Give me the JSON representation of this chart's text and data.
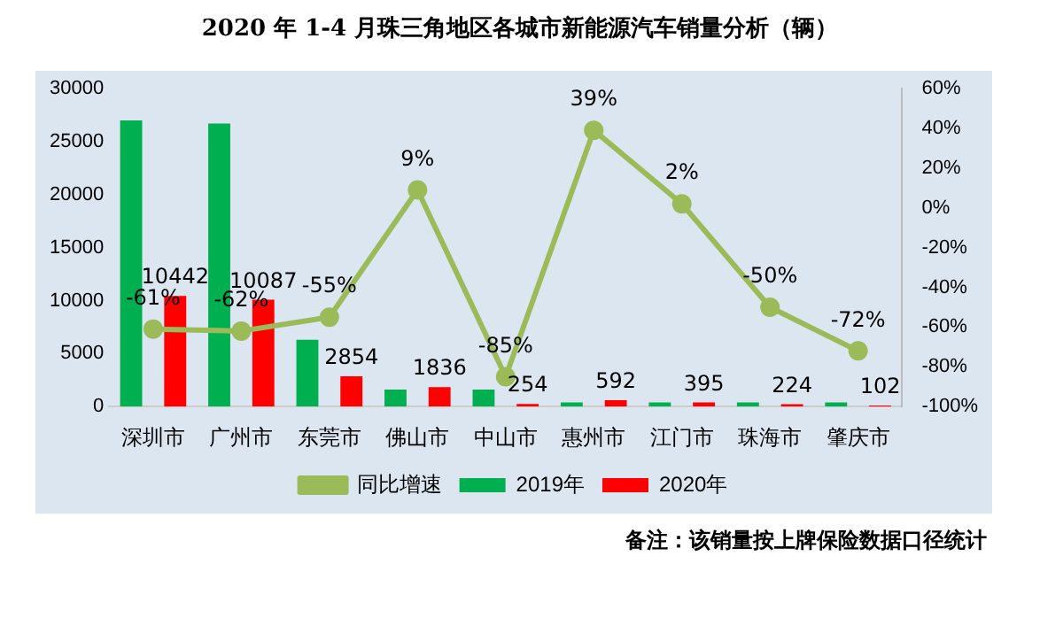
{
  "chart_data": {
    "type": "bar",
    "title": "2020 年 1-4 月珠三角地区各城市新能源汽车销量分析（辆）",
    "categories": [
      "深圳市",
      "广州市",
      "东莞市",
      "佛山市",
      "中山市",
      "惠州市",
      "江门市",
      "珠海市",
      "肇庆市"
    ],
    "series": [
      {
        "name": "2019年",
        "color": "#00b050",
        "values": [
          27000,
          26700,
          6300,
          1600,
          1600,
          400,
          400,
          400,
          400
        ]
      },
      {
        "name": "2020年",
        "color": "#ff0000",
        "values": [
          10442,
          10087,
          2854,
          1836,
          254,
          592,
          395,
          224,
          102
        ],
        "value_labels": [
          "10442",
          "10087",
          "2854",
          "1836",
          "254",
          "592",
          "395",
          "224",
          "102"
        ]
      },
      {
        "name": "同比增速",
        "type": "line",
        "axis": "y2",
        "color": "#9bbb59",
        "values": [
          -61,
          -62,
          -55,
          9,
          -85,
          39,
          2,
          -50,
          -72
        ],
        "value_labels": [
          "-61%",
          "-62%",
          "-55%",
          "9%",
          "-85%",
          "39%",
          "2%",
          "-50%",
          "-72%"
        ]
      }
    ],
    "ylim": [
      0,
      30000
    ],
    "yticks": [
      0,
      5000,
      10000,
      15000,
      20000,
      25000,
      30000
    ],
    "y2lim": [
      -100,
      60
    ],
    "y2ticks": [
      {
        "value": -100,
        "label": "-100%"
      },
      {
        "value": -80,
        "label": "-80%"
      },
      {
        "value": -60,
        "label": "-60%"
      },
      {
        "value": -40,
        "label": "-40%"
      },
      {
        "value": -20,
        "label": "-20%"
      },
      {
        "value": 0,
        "label": "0%"
      },
      {
        "value": 20,
        "label": "20%"
      },
      {
        "value": 40,
        "label": "40%"
      },
      {
        "value": 60,
        "label": "60%"
      }
    ],
    "grid": false,
    "legend": "bottom",
    "marker": "circle",
    "line_style": "solid",
    "annotations": [
      "备注：该销量按上牌保险数据口径统计"
    ]
  }
}
